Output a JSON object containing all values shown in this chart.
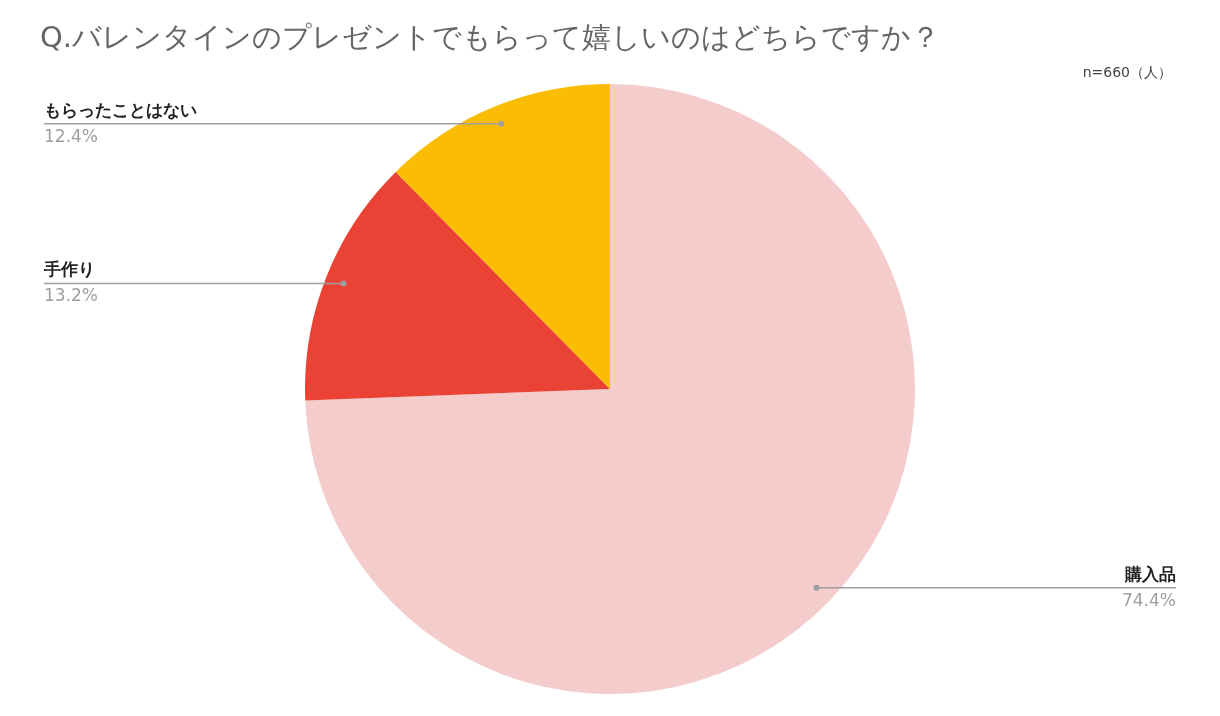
{
  "chart_data": {
    "type": "pie",
    "title": "Q.バレンタインのプレゼントでもらって嬉しいのはどちらですか？",
    "annotations": [
      "n=660（人）"
    ],
    "categories": [
      "購入品",
      "手作り",
      "もらったことはない"
    ],
    "values": [
      74.4,
      13.2,
      12.4
    ],
    "value_labels": [
      "74.4%",
      "13.2%",
      "12.4%"
    ],
    "colors": [
      "#f4cccc",
      "#ea4335",
      "#fbbc04"
    ],
    "legend": false
  }
}
